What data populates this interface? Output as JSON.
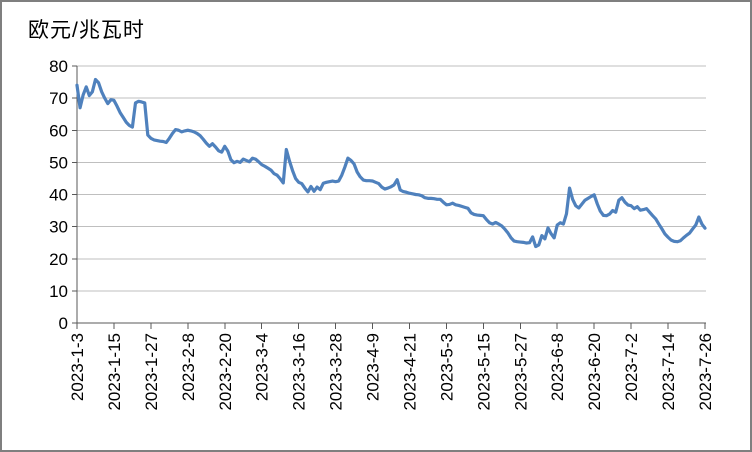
{
  "chart_data": {
    "type": "line",
    "title": "欧元/兆瓦时",
    "xlabel": "",
    "ylabel": "",
    "ylim": [
      0,
      80
    ],
    "ytick_step": 10,
    "y_tick_labels": [
      "80",
      "70",
      "60",
      "50",
      "40",
      "30",
      "20",
      "10",
      "0"
    ],
    "x_tick_labels": [
      "2023-1-3",
      "2023-1-15",
      "2023-1-27",
      "2023-2-8",
      "2023-2-20",
      "2023-3-4",
      "2023-3-16",
      "2023-3-28",
      "2023-4-9",
      "2023-4-21",
      "2023-5-3",
      "2023-5-15",
      "2023-5-27",
      "2023-6-8",
      "2023-6-20",
      "2023-7-2",
      "2023-7-14",
      "2023-7-26"
    ],
    "x_tick_interval_points": 12,
    "n_points": 205,
    "x_range_labels": [
      "2023-1-3",
      "2023-7-26"
    ],
    "grid": true,
    "legend": "none",
    "series": [
      {
        "color": "#4F81BD",
        "values": [
          74.0,
          67.0,
          71.0,
          73.5,
          70.8,
          72.0,
          75.8,
          74.8,
          72.0,
          70.0,
          68.3,
          69.5,
          69.3,
          67.5,
          65.5,
          64.0,
          62.5,
          61.5,
          61.0,
          68.5,
          69.0,
          68.8,
          68.5,
          58.5,
          57.5,
          57.0,
          56.8,
          56.6,
          56.5,
          56.2,
          57.5,
          59.0,
          60.2,
          60.0,
          59.5,
          59.8,
          60.0,
          59.8,
          59.5,
          59.0,
          58.3,
          57.2,
          56.0,
          55.0,
          55.8,
          54.8,
          53.6,
          53.2,
          55.0,
          53.5,
          50.8,
          49.9,
          50.3,
          50.0,
          51.0,
          50.6,
          50.2,
          51.3,
          51.0,
          50.2,
          49.3,
          48.8,
          48.2,
          47.6,
          46.5,
          46.0,
          44.9,
          43.6,
          54.0,
          50.5,
          47.5,
          45.0,
          43.8,
          43.4,
          42.0,
          40.8,
          42.5,
          41.0,
          42.3,
          41.5,
          43.5,
          43.8,
          44.0,
          44.2,
          44.0,
          44.2,
          46.0,
          48.5,
          51.3,
          50.6,
          49.5,
          47.0,
          45.5,
          44.5,
          44.3,
          44.3,
          44.2,
          43.8,
          43.4,
          42.3,
          41.7,
          42.0,
          42.4,
          43.0,
          44.6,
          41.4,
          40.9,
          40.7,
          40.4,
          40.2,
          40.0,
          39.9,
          39.6,
          39.0,
          38.8,
          38.8,
          38.7,
          38.5,
          38.5,
          37.6,
          36.8,
          36.9,
          37.3,
          36.8,
          36.6,
          36.3,
          36.0,
          35.7,
          34.3,
          33.8,
          33.6,
          33.5,
          33.4,
          32.2,
          31.2,
          30.8,
          31.3,
          30.8,
          30.2,
          29.2,
          28.0,
          26.5,
          25.5,
          25.3,
          25.2,
          25.1,
          24.9,
          25.0,
          26.8,
          23.8,
          24.3,
          27.2,
          26.2,
          29.6,
          27.8,
          26.5,
          30.5,
          31.2,
          30.8,
          34.0,
          42.0,
          38.5,
          36.5,
          35.8,
          37.0,
          38.2,
          38.8,
          39.4,
          39.9,
          37.1,
          34.8,
          33.5,
          33.4,
          33.9,
          35.0,
          34.5,
          38.2,
          39.0,
          37.6,
          36.7,
          36.5,
          35.6,
          36.2,
          35.1,
          35.3,
          35.6,
          34.5,
          33.4,
          32.4,
          30.8,
          29.3,
          27.7,
          26.7,
          25.8,
          25.4,
          25.3,
          25.6,
          26.5,
          27.3,
          28.0,
          29.3,
          30.5,
          33.0,
          30.8,
          29.5
        ]
      }
    ],
    "colors": {
      "line": "#4F81BD",
      "grid": "#BFBFBF",
      "axis": "#595959",
      "text": "#000000",
      "background": "#FFFFFF",
      "frame_border": "#7F7F7F"
    }
  }
}
